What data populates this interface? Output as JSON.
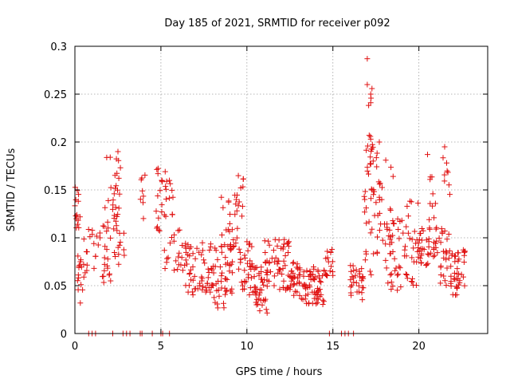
{
  "chart_data": {
    "type": "scatter",
    "title": "Day 185 of 2021, SRMTID for receiver p092",
    "xlabel": "GPS time / hours",
    "ylabel": "SRMTID / TECUs",
    "xlim": [
      0,
      24
    ],
    "ylim": [
      0,
      0.3
    ],
    "xticks": [
      0,
      5,
      10,
      15,
      20
    ],
    "xtick_labels": [
      "0",
      "5",
      "10",
      "15",
      "20"
    ],
    "yticks": [
      0,
      0.05,
      0.1,
      0.15,
      0.2,
      0.25,
      0.3
    ],
    "ytick_labels": [
      "0",
      "0.05",
      "0.1",
      "0.15",
      "0.2",
      "0.25",
      "0.3"
    ],
    "grid": true,
    "marker": "+",
    "color": "#e01010",
    "series": [
      {
        "name": "SRMTID",
        "segments": [
          {
            "t0": 0.0,
            "t1": 0.3,
            "lo": 0.09,
            "hi": 0.155,
            "n": 14
          },
          {
            "t0": 0.1,
            "t1": 0.6,
            "lo": 0.025,
            "hi": 0.085,
            "n": 16
          },
          {
            "t0": 0.5,
            "t1": 1.5,
            "lo": 0.06,
            "hi": 0.11,
            "n": 18
          },
          {
            "t0": 1.5,
            "t1": 2.1,
            "lo": 0.05,
            "hi": 0.115,
            "n": 18
          },
          {
            "t0": 1.7,
            "t1": 2.4,
            "lo": 0.1,
            "hi": 0.185,
            "n": 16
          },
          {
            "t0": 2.3,
            "t1": 2.7,
            "lo": 0.13,
            "hi": 0.19,
            "n": 10
          },
          {
            "t0": 2.2,
            "t1": 3.0,
            "lo": 0.06,
            "hi": 0.13,
            "n": 16
          },
          {
            "t0": 3.8,
            "t1": 4.1,
            "lo": 0.11,
            "hi": 0.17,
            "n": 8
          },
          {
            "t0": 4.6,
            "t1": 5.3,
            "lo": 0.1,
            "hi": 0.175,
            "n": 16
          },
          {
            "t0": 5.0,
            "t1": 5.8,
            "lo": 0.11,
            "hi": 0.16,
            "n": 14
          },
          {
            "t0": 5.2,
            "t1": 6.4,
            "lo": 0.065,
            "hi": 0.12,
            "n": 22
          },
          {
            "t0": 6.4,
            "t1": 8.0,
            "lo": 0.04,
            "hi": 0.095,
            "n": 60
          },
          {
            "t0": 8.0,
            "t1": 9.2,
            "lo": 0.025,
            "hi": 0.095,
            "n": 50
          },
          {
            "t0": 8.5,
            "t1": 9.5,
            "lo": 0.09,
            "hi": 0.145,
            "n": 22
          },
          {
            "t0": 9.3,
            "t1": 9.8,
            "lo": 0.12,
            "hi": 0.165,
            "n": 12
          },
          {
            "t0": 9.5,
            "t1": 10.5,
            "lo": 0.04,
            "hi": 0.1,
            "n": 40
          },
          {
            "t0": 10.5,
            "t1": 11.2,
            "lo": 0.02,
            "hi": 0.07,
            "n": 35
          },
          {
            "t0": 11.0,
            "t1": 12.5,
            "lo": 0.045,
            "hi": 0.1,
            "n": 55
          },
          {
            "t0": 12.5,
            "t1": 13.3,
            "lo": 0.035,
            "hi": 0.075,
            "n": 35
          },
          {
            "t0": 13.3,
            "t1": 14.5,
            "lo": 0.03,
            "hi": 0.07,
            "n": 60
          },
          {
            "t0": 14.5,
            "t1": 15.0,
            "lo": 0.06,
            "hi": 0.09,
            "n": 16
          },
          {
            "t0": 16.0,
            "t1": 16.8,
            "lo": 0.035,
            "hi": 0.075,
            "n": 30
          },
          {
            "t0": 16.8,
            "t1": 17.4,
            "lo": 0.06,
            "hi": 0.2,
            "n": 30
          },
          {
            "t0": 17.0,
            "t1": 17.3,
            "lo": 0.19,
            "hi": 0.26,
            "n": 10
          },
          {
            "t0": 17.4,
            "t1": 18.5,
            "lo": 0.08,
            "hi": 0.19,
            "n": 30
          },
          {
            "t0": 18.0,
            "t1": 19.2,
            "lo": 0.04,
            "hi": 0.12,
            "n": 40
          },
          {
            "t0": 19.2,
            "t1": 20.0,
            "lo": 0.05,
            "hi": 0.14,
            "n": 30
          },
          {
            "t0": 20.0,
            "t1": 20.6,
            "lo": 0.07,
            "hi": 0.12,
            "n": 25
          },
          {
            "t0": 20.6,
            "t1": 21.1,
            "lo": 0.08,
            "hi": 0.165,
            "n": 22
          },
          {
            "t0": 21.1,
            "t1": 21.8,
            "lo": 0.05,
            "hi": 0.11,
            "n": 25
          },
          {
            "t0": 21.4,
            "t1": 21.8,
            "lo": 0.14,
            "hi": 0.19,
            "n": 8
          },
          {
            "t0": 21.8,
            "t1": 22.7,
            "lo": 0.04,
            "hi": 0.09,
            "n": 40
          }
        ],
        "points": [
          [
            17.0,
            0.287
          ],
          [
            17.0,
            0.26
          ],
          [
            17.2,
            0.25
          ],
          [
            17.2,
            0.241
          ],
          [
            21.5,
            0.195
          ],
          [
            2.5,
            0.19
          ],
          [
            20.5,
            0.187
          ],
          [
            17.7,
            0.2
          ]
        ],
        "zero_points_x": [
          0.8,
          1.0,
          1.2,
          2.2,
          2.8,
          3.0,
          3.2,
          3.8,
          3.9,
          4.5,
          5.0,
          5.1,
          5.5,
          14.8,
          15.5,
          15.7,
          15.9,
          16.2
        ]
      }
    ]
  }
}
